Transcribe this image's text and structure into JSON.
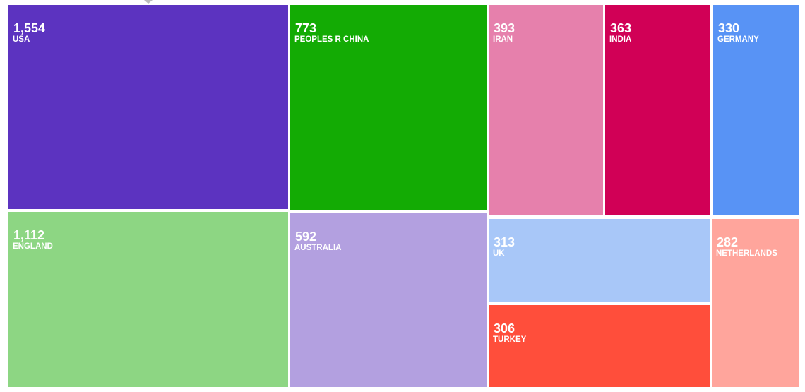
{
  "chart_data": {
    "type": "treemap",
    "categories": [
      "USA",
      "ENGLAND",
      "PEOPLES R CHINA",
      "AUSTRALIA",
      "IRAN",
      "INDIA",
      "GERMANY",
      "UK",
      "TURKEY",
      "NETHERLANDS"
    ],
    "values": [
      1554,
      1112,
      773,
      592,
      393,
      363,
      330,
      313,
      306,
      282
    ],
    "value_labels": [
      "1,554",
      "1,112",
      "773",
      "592",
      "393",
      "363",
      "330",
      "313",
      "306",
      "282"
    ],
    "colors": [
      "#5c33c0",
      "#8dd683",
      "#13ab04",
      "#b3a0e0",
      "#e680ac",
      "#d10056",
      "#5893f5",
      "#a8c7f8",
      "#ff4e3b",
      "#ffa59c"
    ]
  }
}
